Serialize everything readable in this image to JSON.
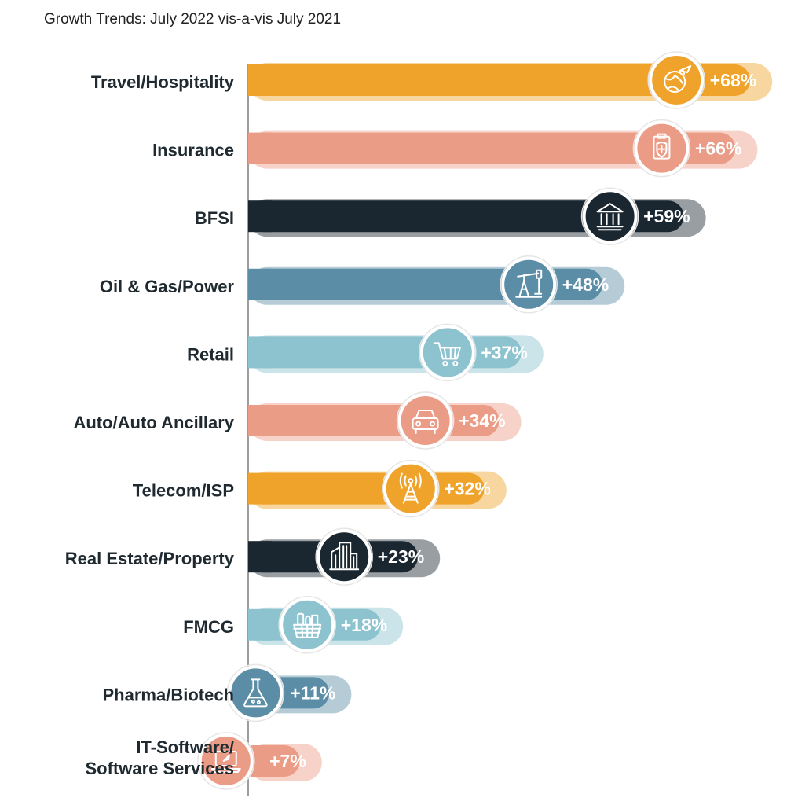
{
  "chart_data": {
    "type": "bar",
    "orientation": "horizontal",
    "title": "Growth Trends: July 2022  vis-a-vis July 2021",
    "categories": [
      "Travel/Hospitality",
      "Insurance",
      "BFSI",
      "Oil & Gas/Power",
      "Retail",
      "Auto/Auto Ancillary",
      "Telecom/ISP",
      "Real Estate/Property",
      "FMCG",
      "Pharma/Biotech",
      "IT-Software/ Software Services"
    ],
    "values": [
      68,
      66,
      59,
      48,
      37,
      34,
      32,
      23,
      18,
      11,
      7
    ],
    "data_labels": [
      "+68%",
      "+66%",
      "+59%",
      "+48%",
      "+37%",
      "+34%",
      "+32%",
      "+23%",
      "+18%",
      "+11%",
      "+7%"
    ],
    "unit": "%",
    "legend": "none",
    "grid": false,
    "colors": [
      "#f0a32a",
      "#eb9c87",
      "#1b2730",
      "#5b8ea6",
      "#8cc3cf",
      "#eb9c87",
      "#f0a32a",
      "#1b2730",
      "#8cc3cf",
      "#5b8ea6",
      "#eb9c87"
    ],
    "icons": [
      "globe-plane-icon",
      "shield-clipboard-icon",
      "bank-icon",
      "oil-pump-icon",
      "shopping-cart-icon",
      "car-icon",
      "signal-tower-icon",
      "buildings-icon",
      "grocery-basket-icon",
      "flask-icon",
      "laptop-icon"
    ]
  }
}
